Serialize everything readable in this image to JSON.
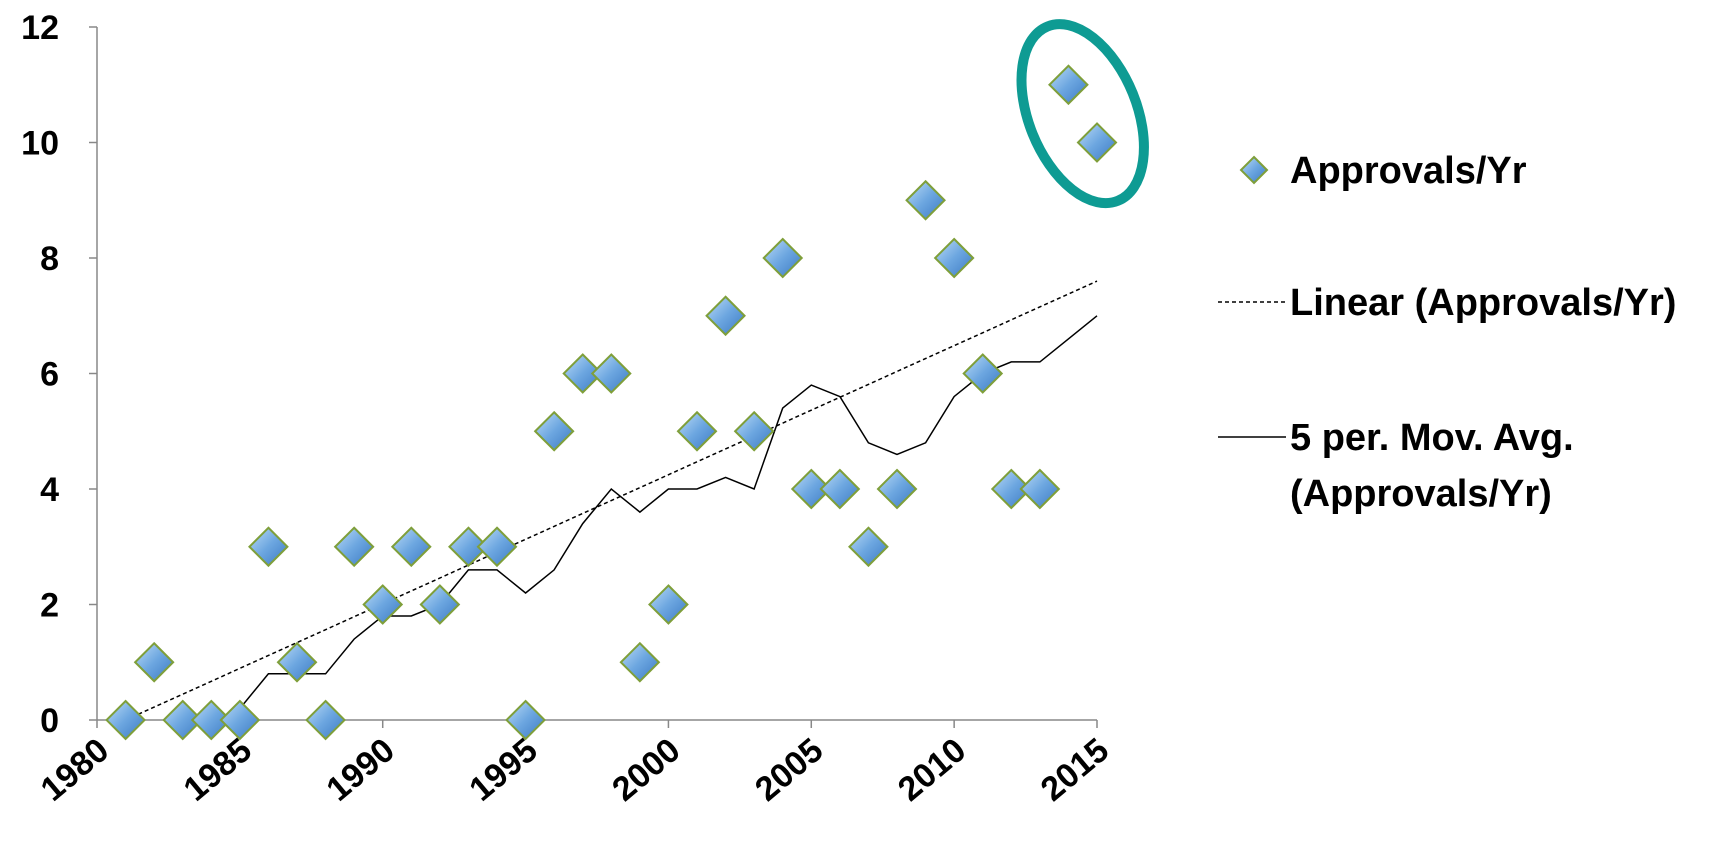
{
  "chart_data": {
    "type": "scatter",
    "title": "",
    "xlabel": "",
    "ylabel": "",
    "xlim": [
      1980,
      2015
    ],
    "ylim": [
      0,
      12
    ],
    "x_ticks": [
      1980,
      1985,
      1990,
      1995,
      2000,
      2005,
      2010,
      2015
    ],
    "y_ticks": [
      0,
      2,
      4,
      6,
      8,
      10,
      12
    ],
    "grid": false,
    "legend_position": "right",
    "series": [
      {
        "name": "Approvals/Yr",
        "kind": "scatter",
        "marker": "diamond",
        "color": "#5B9BD5",
        "x": [
          1981,
          1982,
          1983,
          1984,
          1985,
          1986,
          1987,
          1988,
          1989,
          1990,
          1991,
          1992,
          1993,
          1994,
          1995,
          1996,
          1997,
          1998,
          1999,
          2000,
          2001,
          2002,
          2003,
          2004,
          2005,
          2006,
          2007,
          2008,
          2009,
          2010,
          2011,
          2012,
          2013,
          2014,
          2015
        ],
        "y": [
          0,
          1,
          0,
          0,
          0,
          3,
          1,
          0,
          3,
          2,
          3,
          2,
          3,
          3,
          0,
          5,
          6,
          6,
          1,
          2,
          5,
          7,
          5,
          8,
          4,
          4,
          3,
          4,
          9,
          8,
          6,
          4,
          4,
          11,
          10
        ]
      },
      {
        "name": "Linear (Approvals/Yr)",
        "kind": "line",
        "style": "dotted",
        "color": "#000000",
        "x": [
          1981,
          2015
        ],
        "y": [
          0.0,
          7.6
        ]
      },
      {
        "name": "5 per. Mov. Avg. (Approvals/Yr)",
        "kind": "line",
        "style": "solid",
        "color": "#000000",
        "x": [
          1985,
          1986,
          1987,
          1988,
          1989,
          1990,
          1991,
          1992,
          1993,
          1994,
          1995,
          1996,
          1997,
          1998,
          1999,
          2000,
          2001,
          2002,
          2003,
          2004,
          2005,
          2006,
          2007,
          2008,
          2009,
          2010,
          2011,
          2012,
          2013,
          2014,
          2015
        ],
        "y": [
          0.2,
          0.8,
          0.8,
          0.8,
          1.4,
          1.8,
          1.8,
          2.0,
          2.6,
          2.6,
          2.2,
          2.6,
          3.4,
          4.0,
          3.6,
          4.0,
          4.0,
          4.2,
          4.0,
          5.4,
          5.8,
          5.6,
          4.8,
          4.6,
          4.8,
          5.6,
          6.0,
          6.2,
          6.2,
          6.6,
          7.0
        ]
      }
    ],
    "annotation": {
      "shape": "ellipse",
      "color": "#0E9B93",
      "highlights_x": [
        2014,
        2015
      ]
    },
    "legend": [
      {
        "label": "Approvals/Yr",
        "symbol": "diamond"
      },
      {
        "label": "Linear (Approvals/Yr)",
        "symbol": "dotted-line"
      },
      {
        "label_lines": [
          "5 per. Mov. Avg.",
          "(Approvals/Yr)"
        ],
        "symbol": "solid-line"
      }
    ]
  }
}
